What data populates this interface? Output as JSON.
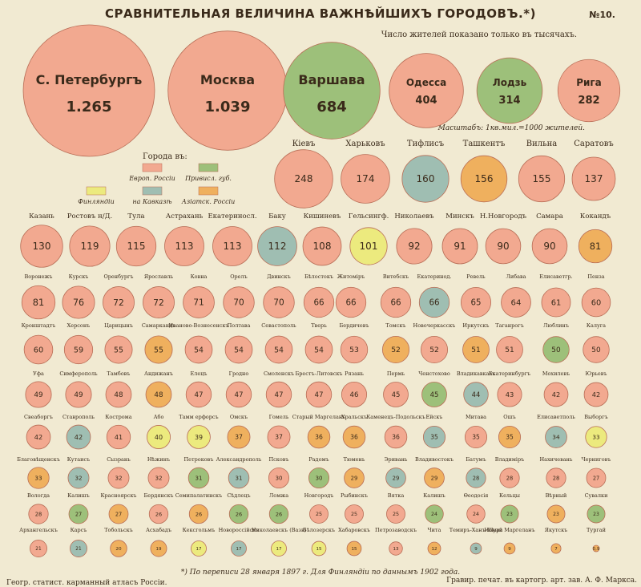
{
  "header": {
    "title": "СРАВНИТЕЛЬНАЯ ВЕЛИЧИНА ВАЖНѢЙШИХЪ ГОРОДОВЪ.*)",
    "sheet_no": "№10.",
    "subtitle": "Число жителей показано только въ тысячахъ.",
    "scale_note": "Масштабъ: 1кв.мил.=1000 жителей."
  },
  "legend": {
    "heading": "Города въ:",
    "items": [
      {
        "label": "Европ. Россіи",
        "color": "#f2a990"
      },
      {
        "label": "Привисл. губ.",
        "color": "#9dc07a"
      },
      {
        "label": "Финляндіи",
        "color": "#ecea7e"
      },
      {
        "label": "на Кавказѣ",
        "color": "#9fbeb2"
      },
      {
        "label": "Азіатск. Россіи",
        "color": "#efb05e"
      }
    ]
  },
  "footer": {
    "note": "*) По переписи 28 января 1897 г. Для Финляндіи по даннымъ 1902 года.",
    "left": "Геогр. статист. карманный атласъ Россіи.",
    "right": "Гравир. печат. въ картогр. арт. зав. А. Ф. Маркса."
  },
  "colors": {
    "europe": "#f2a990",
    "vistula": "#9dc07a",
    "finland": "#ecea7e",
    "caucasus": "#9fbeb2",
    "asia": "#efb05e",
    "stroke": "#b86d56"
  },
  "chart_data": {
    "type": "bubble",
    "title": "СРАВНИТЕЛЬНАЯ ВЕЛИЧИНА ВАЖНѢЙШИХЪ ГОРОДОВЪ.*)",
    "unit": "тысячи жителей",
    "rows": [
      [
        {
          "name": "С. Петербургъ",
          "value": 1265,
          "label": "1.265",
          "region": "europe"
        },
        {
          "name": "Москва",
          "value": 1039,
          "label": "1.039",
          "region": "europe"
        },
        {
          "name": "Варшава",
          "value": 684,
          "label": "684",
          "region": "vistula"
        },
        {
          "name": "Одесса",
          "value": 404,
          "label": "404",
          "region": "europe"
        },
        {
          "name": "Лодзь",
          "value": 314,
          "label": "314",
          "region": "vistula"
        },
        {
          "name": "Рига",
          "value": 282,
          "label": "282",
          "region": "europe"
        }
      ],
      [
        {
          "name": "Кіевъ",
          "value": 248,
          "label": "248",
          "region": "europe"
        },
        {
          "name": "Харьковъ",
          "value": 174,
          "label": "174",
          "region": "europe"
        },
        {
          "name": "Тифлисъ",
          "value": 160,
          "label": "160",
          "region": "caucasus"
        },
        {
          "name": "Ташкентъ",
          "value": 156,
          "label": "156",
          "region": "asia"
        },
        {
          "name": "Вильна",
          "value": 155,
          "label": "155",
          "region": "europe"
        },
        {
          "name": "Саратовъ",
          "value": 137,
          "label": "137",
          "region": "europe"
        }
      ],
      [
        {
          "name": "Казань",
          "value": 130,
          "label": "130",
          "region": "europe"
        },
        {
          "name": "Ростовъ н/Д.",
          "value": 119,
          "label": "119",
          "region": "europe"
        },
        {
          "name": "Тула",
          "value": 115,
          "label": "115",
          "region": "europe"
        },
        {
          "name": "Астрахань",
          "value": 113,
          "label": "113",
          "region": "europe"
        },
        {
          "name": "Екатериносл.",
          "value": 113,
          "label": "113",
          "region": "europe"
        },
        {
          "name": "Баку",
          "value": 112,
          "label": "112",
          "region": "caucasus"
        },
        {
          "name": "Кишиневъ",
          "value": 108,
          "label": "108",
          "region": "europe"
        },
        {
          "name": "Гельсингф.",
          "value": 101,
          "label": "101",
          "region": "finland"
        },
        {
          "name": "Николаевъ",
          "value": 92,
          "label": "92",
          "region": "europe"
        },
        {
          "name": "Минскъ",
          "value": 91,
          "label": "91",
          "region": "europe"
        },
        {
          "name": "Н.Новгородъ",
          "value": 90,
          "label": "90",
          "region": "europe"
        },
        {
          "name": "Самара",
          "value": 90,
          "label": "90",
          "region": "europe"
        },
        {
          "name": "Кокандъ",
          "value": 81,
          "label": "81",
          "region": "asia"
        }
      ],
      [
        {
          "name": "Воронежъ",
          "value": 81,
          "label": "81",
          "region": "europe"
        },
        {
          "name": "Курскъ",
          "value": 76,
          "label": "76",
          "region": "europe"
        },
        {
          "name": "Оренбургъ",
          "value": 72,
          "label": "72",
          "region": "europe"
        },
        {
          "name": "Ярославль",
          "value": 72,
          "label": "72",
          "region": "europe"
        },
        {
          "name": "Ковна",
          "value": 71,
          "label": "71",
          "region": "europe"
        },
        {
          "name": "Орелъ",
          "value": 70,
          "label": "70",
          "region": "europe"
        },
        {
          "name": "Двинскъ",
          "value": 70,
          "label": "70",
          "region": "europe"
        },
        {
          "name": "Бѣлостокъ",
          "value": 66,
          "label": "66",
          "region": "europe"
        },
        {
          "name": "Житоміръ",
          "value": 66,
          "label": "66",
          "region": "europe"
        },
        {
          "name": "Витебскъ",
          "value": 66,
          "label": "66",
          "region": "europe"
        },
        {
          "name": "Екатеринод.",
          "value": 66,
          "label": "66",
          "region": "caucasus"
        },
        {
          "name": "Ревель",
          "value": 65,
          "label": "65",
          "region": "europe"
        },
        {
          "name": "Либава",
          "value": 64,
          "label": "64",
          "region": "europe"
        },
        {
          "name": "Елисаветгр.",
          "value": 61,
          "label": "61",
          "region": "europe"
        },
        {
          "name": "Пенза",
          "value": 60,
          "label": "60",
          "region": "europe"
        }
      ],
      [
        {
          "name": "Кронштадтъ",
          "value": 60,
          "label": "60",
          "region": "europe"
        },
        {
          "name": "Херсонъ",
          "value": 59,
          "label": "59",
          "region": "europe"
        },
        {
          "name": "Царицынъ",
          "value": 55,
          "label": "55",
          "region": "europe"
        },
        {
          "name": "Самаркандъ",
          "value": 55,
          "label": "55",
          "region": "asia"
        },
        {
          "name": "Иваново-Вознесенскъ",
          "value": 54,
          "label": "54",
          "region": "europe"
        },
        {
          "name": "Полтава",
          "value": 54,
          "label": "54",
          "region": "europe"
        },
        {
          "name": "Севастополь",
          "value": 54,
          "label": "54",
          "region": "europe"
        },
        {
          "name": "Тверь",
          "value": 54,
          "label": "54",
          "region": "europe"
        },
        {
          "name": "Бердичевъ",
          "value": 53,
          "label": "53",
          "region": "europe"
        },
        {
          "name": "Томскъ",
          "value": 52,
          "label": "52",
          "region": "asia"
        },
        {
          "name": "Новочеркасскъ",
          "value": 52,
          "label": "52",
          "region": "europe"
        },
        {
          "name": "Иркутскъ",
          "value": 51,
          "label": "51",
          "region": "asia"
        },
        {
          "name": "Таганрогъ",
          "value": 51,
          "label": "51",
          "region": "europe"
        },
        {
          "name": "Люблинъ",
          "value": 50,
          "label": "50",
          "region": "vistula"
        },
        {
          "name": "Калуга",
          "value": 50,
          "label": "50",
          "region": "europe"
        }
      ],
      [
        {
          "name": "Уфа",
          "value": 49,
          "label": "49",
          "region": "europe"
        },
        {
          "name": "Симферополь",
          "value": 49,
          "label": "49",
          "region": "europe"
        },
        {
          "name": "Тамбовъ",
          "value": 48,
          "label": "48",
          "region": "europe"
        },
        {
          "name": "Андижанъ",
          "value": 48,
          "label": "48",
          "region": "asia"
        },
        {
          "name": "Елецъ",
          "value": 47,
          "label": "47",
          "region": "europe"
        },
        {
          "name": "Гродно",
          "value": 47,
          "label": "47",
          "region": "europe"
        },
        {
          "name": "Смоленскъ",
          "value": 47,
          "label": "47",
          "region": "europe"
        },
        {
          "name": "Брестъ-Литовскъ",
          "value": 47,
          "label": "47",
          "region": "europe"
        },
        {
          "name": "Рязань",
          "value": 46,
          "label": "46",
          "region": "europe"
        },
        {
          "name": "Пермь",
          "value": 45,
          "label": "45",
          "region": "europe"
        },
        {
          "name": "Ченстохово",
          "value": 45,
          "label": "45",
          "region": "vistula"
        },
        {
          "name": "Владикавказъ",
          "value": 44,
          "label": "44",
          "region": "caucasus"
        },
        {
          "name": "Екатеринбургъ",
          "value": 43,
          "label": "43",
          "region": "europe"
        },
        {
          "name": "Мохилевъ",
          "value": 42,
          "label": "42",
          "region": "europe"
        },
        {
          "name": "Юрьевъ",
          "value": 42,
          "label": "42",
          "region": "europe"
        }
      ],
      [
        {
          "name": "Свеаборгъ",
          "value": 42,
          "label": "42",
          "region": "europe"
        },
        {
          "name": "Ставрополь",
          "value": 42,
          "label": "42",
          "region": "caucasus"
        },
        {
          "name": "Кострома",
          "value": 41,
          "label": "41",
          "region": "europe"
        },
        {
          "name": "Або",
          "value": 40,
          "label": "40",
          "region": "finland"
        },
        {
          "name": "Тамм ерфорсъ",
          "value": 39,
          "label": "39",
          "region": "finland"
        },
        {
          "name": "Омскъ",
          "value": 37,
          "label": "37",
          "region": "asia"
        },
        {
          "name": "Гомель",
          "value": 37,
          "label": "37",
          "region": "europe"
        },
        {
          "name": "Старый Маргеланъ",
          "value": 36,
          "label": "36",
          "region": "asia"
        },
        {
          "name": "Уральскъ",
          "value": 36,
          "label": "36",
          "region": "asia"
        },
        {
          "name": "Каменецъ-Подольскъ",
          "value": 36,
          "label": "36",
          "region": "europe"
        },
        {
          "name": "Ейскъ",
          "value": 35,
          "label": "35",
          "region": "caucasus"
        },
        {
          "name": "Митава",
          "value": 35,
          "label": "35",
          "region": "europe"
        },
        {
          "name": "Ошъ",
          "value": 35,
          "label": "35",
          "region": "asia"
        },
        {
          "name": "Елисаветполь",
          "value": 34,
          "label": "34",
          "region": "caucasus"
        },
        {
          "name": "Выборгъ",
          "value": 33,
          "label": "33",
          "region": "finland"
        }
      ],
      [
        {
          "name": "Благовѣщенскъ",
          "value": 33,
          "label": "33",
          "region": "asia"
        },
        {
          "name": "Кутаисъ",
          "value": 32,
          "label": "32",
          "region": "caucasus"
        },
        {
          "name": "Сызрань",
          "value": 32,
          "label": "32",
          "region": "europe"
        },
        {
          "name": "Нѣжинъ",
          "value": 32,
          "label": "32",
          "region": "europe"
        },
        {
          "name": "Петроковъ",
          "value": 31,
          "label": "31",
          "region": "vistula"
        },
        {
          "name": "Александрополь",
          "value": 31,
          "label": "31",
          "region": "caucasus"
        },
        {
          "name": "Псковъ",
          "value": 30,
          "label": "30",
          "region": "europe"
        },
        {
          "name": "Радомъ",
          "value": 30,
          "label": "30",
          "region": "vistula"
        },
        {
          "name": "Тюмень",
          "value": 29,
          "label": "29",
          "region": "asia"
        },
        {
          "name": "Эривань",
          "value": 29,
          "label": "29",
          "region": "caucasus"
        },
        {
          "name": "Владивостокъ",
          "value": 29,
          "label": "29",
          "region": "asia"
        },
        {
          "name": "Батумъ",
          "value": 28,
          "label": "28",
          "region": "caucasus"
        },
        {
          "name": "Владиміръ",
          "value": 28,
          "label": "28",
          "region": "europe"
        },
        {
          "name": "Нахичевань",
          "value": 28,
          "label": "28",
          "region": "europe"
        },
        {
          "name": "Черниговъ",
          "value": 27,
          "label": "27",
          "region": "europe"
        }
      ],
      [
        {
          "name": "Вологда",
          "value": 28,
          "label": "28",
          "region": "europe"
        },
        {
          "name": "Калишъ",
          "value": 27,
          "label": "27",
          "region": "vistula"
        },
        {
          "name": "Красноярскъ",
          "value": 27,
          "label": "27",
          "region": "asia"
        },
        {
          "name": "Бердянскъ",
          "value": 26,
          "label": "26",
          "region": "europe"
        },
        {
          "name": "Семипалатинскъ",
          "value": 26,
          "label": "26",
          "region": "asia"
        },
        {
          "name": "Сѣдлецъ",
          "value": 26,
          "label": "26",
          "region": "vistula"
        },
        {
          "name": "Ломжа",
          "value": 26,
          "label": "26",
          "region": "vistula"
        },
        {
          "name": "Новгородъ",
          "value": 25,
          "label": "25",
          "region": "europe"
        },
        {
          "name": "Рыбинскъ",
          "value": 25,
          "label": "25",
          "region": "europe"
        },
        {
          "name": "Вятка",
          "value": 25,
          "label": "25",
          "region": "europe"
        },
        {
          "name": "Калишъ",
          "value": 24,
          "label": "24",
          "region": "vistula"
        },
        {
          "name": "Ѳеодосія",
          "value": 24,
          "label": "24",
          "region": "europe"
        },
        {
          "name": "Кельцы",
          "value": 23,
          "label": "23",
          "region": "vistula"
        },
        {
          "name": "Вѣрный",
          "value": 23,
          "label": "23",
          "region": "asia"
        },
        {
          "name": "Сувалки",
          "value": 23,
          "label": "23",
          "region": "vistula"
        }
      ],
      [
        {
          "name": "Архангельскъ",
          "value": 21,
          "label": "21",
          "region": "europe"
        },
        {
          "name": "Карсъ",
          "value": 21,
          "label": "21",
          "region": "caucasus"
        },
        {
          "name": "Тобольскъ",
          "value": 20,
          "label": "20",
          "region": "asia"
        },
        {
          "name": "Асхабадъ",
          "value": 19,
          "label": "19",
          "region": "asia"
        },
        {
          "name": "Кексгольмъ",
          "value": 17,
          "label": "17",
          "region": "finland"
        },
        {
          "name": "Новороссійскъ",
          "value": 17,
          "label": "17",
          "region": "caucasus"
        },
        {
          "name": "Николаевскъ (Вазв)",
          "value": 17,
          "label": "17",
          "region": "finland"
        },
        {
          "name": "Бѣлозерскъ",
          "value": 15,
          "label": "15",
          "region": "finland"
        },
        {
          "name": "Хабаровскъ",
          "value": 15,
          "label": "15",
          "region": "asia"
        },
        {
          "name": "Петрозаводскъ",
          "value": 13,
          "label": "13",
          "region": "europe"
        },
        {
          "name": "Чита",
          "value": 12,
          "label": "12",
          "region": "asia"
        },
        {
          "name": "Темиръ-Ханъ-Шура",
          "value": 9,
          "label": "9",
          "region": "caucasus"
        },
        {
          "name": "Новый Маргеланъ",
          "value": 9,
          "label": "9",
          "region": "asia"
        },
        {
          "name": "Якутскъ",
          "value": 7,
          "label": "7",
          "region": "asia"
        },
        {
          "name": "Тургай",
          "value": 0.9,
          "label": "0,9",
          "region": "asia"
        }
      ]
    ]
  }
}
